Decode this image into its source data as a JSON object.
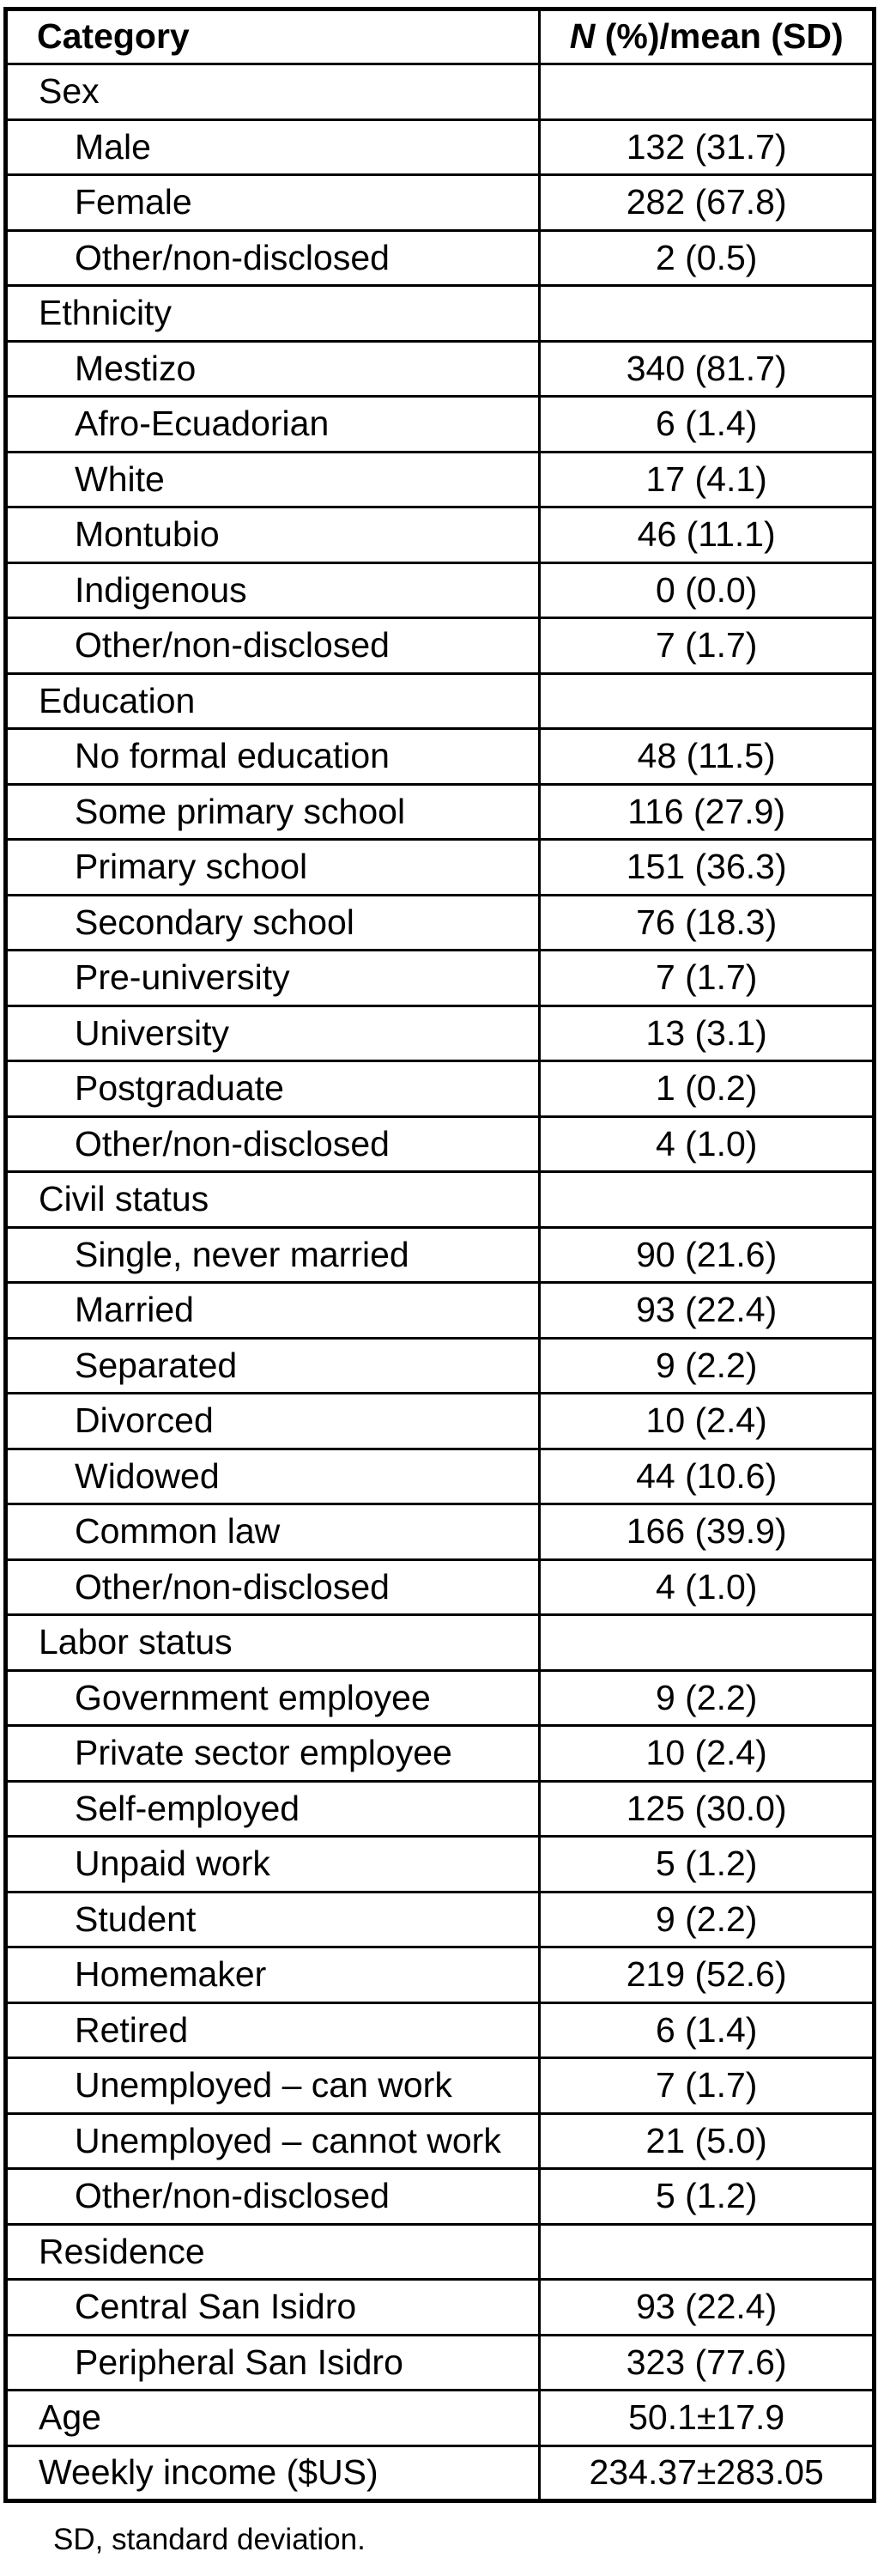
{
  "table": {
    "header": {
      "category": "Category",
      "value_italic": "N",
      "value_rest": " (%)/mean (SD)"
    },
    "rows": [
      {
        "label": "Sex",
        "value": "",
        "indent": 0
      },
      {
        "label": "Male",
        "value": "132 (31.7)",
        "indent": 1
      },
      {
        "label": "Female",
        "value": "282 (67.8)",
        "indent": 1
      },
      {
        "label": "Other/non-disclosed",
        "value": "2 (0.5)",
        "indent": 1
      },
      {
        "label": "Ethnicity",
        "value": "",
        "indent": 0
      },
      {
        "label": "Mestizo",
        "value": "340 (81.7)",
        "indent": 1
      },
      {
        "label": "Afro-Ecuadorian",
        "value": "6 (1.4)",
        "indent": 1
      },
      {
        "label": "White",
        "value": "17 (4.1)",
        "indent": 1
      },
      {
        "label": "Montubio",
        "value": "46 (11.1)",
        "indent": 1
      },
      {
        "label": "Indigenous",
        "value": "0 (0.0)",
        "indent": 1
      },
      {
        "label": "Other/non-disclosed",
        "value": "7 (1.7)",
        "indent": 1
      },
      {
        "label": "Education",
        "value": "",
        "indent": 0
      },
      {
        "label": "No formal education",
        "value": "48 (11.5)",
        "indent": 1
      },
      {
        "label": "Some primary school",
        "value": "116 (27.9)",
        "indent": 1
      },
      {
        "label": "Primary school",
        "value": "151 (36.3)",
        "indent": 1
      },
      {
        "label": "Secondary school",
        "value": "76 (18.3)",
        "indent": 1
      },
      {
        "label": "Pre-university",
        "value": "7 (1.7)",
        "indent": 1
      },
      {
        "label": "University",
        "value": "13 (3.1)",
        "indent": 1
      },
      {
        "label": "Postgraduate",
        "value": "1 (0.2)",
        "indent": 1
      },
      {
        "label": "Other/non-disclosed",
        "value": "4 (1.0)",
        "indent": 1
      },
      {
        "label": "Civil status",
        "value": "",
        "indent": 0
      },
      {
        "label": "Single, never married",
        "value": "90 (21.6)",
        "indent": 1
      },
      {
        "label": "Married",
        "value": "93 (22.4)",
        "indent": 1
      },
      {
        "label": "Separated",
        "value": "9 (2.2)",
        "indent": 1
      },
      {
        "label": "Divorced",
        "value": "10 (2.4)",
        "indent": 1
      },
      {
        "label": "Widowed",
        "value": "44 (10.6)",
        "indent": 1
      },
      {
        "label": "Common law",
        "value": "166 (39.9)",
        "indent": 1
      },
      {
        "label": "Other/non-disclosed",
        "value": "4 (1.0)",
        "indent": 1
      },
      {
        "label": "Labor status",
        "value": "",
        "indent": 0
      },
      {
        "label": "Government employee",
        "value": "9 (2.2)",
        "indent": 1
      },
      {
        "label": "Private sector employee",
        "value": "10 (2.4)",
        "indent": 1
      },
      {
        "label": "Self-employed",
        "value": "125 (30.0)",
        "indent": 1
      },
      {
        "label": "Unpaid work",
        "value": "5 (1.2)",
        "indent": 1
      },
      {
        "label": "Student",
        "value": "9 (2.2)",
        "indent": 1
      },
      {
        "label": "Homemaker",
        "value": "219 (52.6)",
        "indent": 1
      },
      {
        "label": "Retired",
        "value": "6 (1.4)",
        "indent": 1
      },
      {
        "label": "Unemployed – can work",
        "value": "7 (1.7)",
        "indent": 1
      },
      {
        "label": "Unemployed – cannot work",
        "value": "21 (5.0)",
        "indent": 1
      },
      {
        "label": "Other/non-disclosed",
        "value": "5 (1.2)",
        "indent": 1
      },
      {
        "label": "Residence",
        "value": "",
        "indent": 0
      },
      {
        "label": "Central San Isidro",
        "value": "93 (22.4)",
        "indent": 1
      },
      {
        "label": "Peripheral San Isidro",
        "value": "323 (77.6)",
        "indent": 1
      },
      {
        "label": "Age",
        "value": "50.1±17.9",
        "indent": 0
      },
      {
        "label": "Weekly income ($US)",
        "value": "234.37±283.05",
        "indent": 0
      }
    ]
  },
  "footnote": "SD, standard deviation.",
  "colors": {
    "border": "#000000",
    "text": "#000000",
    "background": "#ffffff"
  }
}
